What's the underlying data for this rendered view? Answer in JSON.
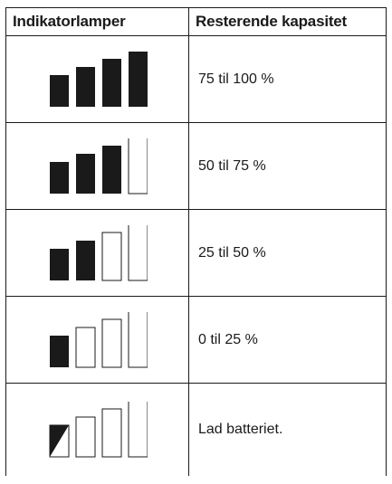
{
  "table": {
    "headers": [
      "Indikatorlamper",
      "Resterende kapasitet"
    ],
    "rows": [
      {
        "capacity": "75 til 100 %",
        "indicator": {
          "filled_bars": 4,
          "total_bars": 4,
          "half_filled_first": false
        }
      },
      {
        "capacity": "50 til 75 %",
        "indicator": {
          "filled_bars": 3,
          "total_bars": 4,
          "half_filled_first": false
        }
      },
      {
        "capacity": "25 til 50 %",
        "indicator": {
          "filled_bars": 2,
          "total_bars": 4,
          "half_filled_first": false
        }
      },
      {
        "capacity": "0 til 25 %",
        "indicator": {
          "filled_bars": 1,
          "total_bars": 4,
          "half_filled_first": false
        }
      },
      {
        "capacity": "Lad batteriet.",
        "indicator": {
          "filled_bars": 0,
          "total_bars": 4,
          "half_filled_first": true
        }
      }
    ]
  },
  "colors": {
    "filled": "#1a1a1a",
    "outline": "#1a1a1a",
    "empty": "#ffffff"
  }
}
